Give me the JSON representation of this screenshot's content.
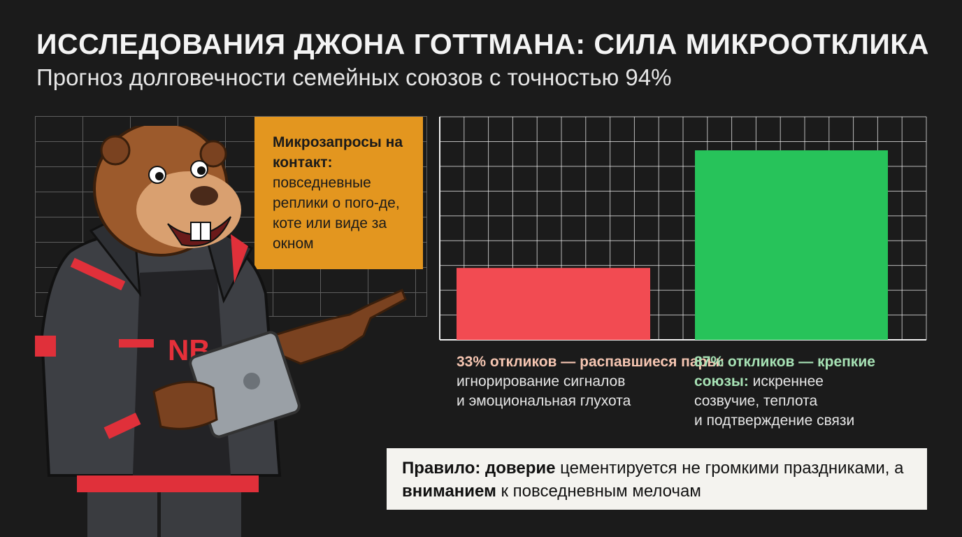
{
  "header": {
    "title": "ИССЛЕДОВАНИЯ ДЖОНА ГОТТМАНА: СИЛА МИКРООТКЛИКА",
    "subtitle": "Прогноз долговечности семейных союзов с точностью 94%"
  },
  "callout": {
    "heading": "Микрозапросы на контакт:",
    "body": "повседневные реплики о пого-де, коте или виде за окном"
  },
  "chart_data": {
    "type": "bar",
    "categories": [
      "33% откликов — распавшиеся пары",
      "87% откликов — крепкие союзы"
    ],
    "values": [
      33,
      87
    ],
    "ylim": [
      0,
      100
    ],
    "grid": true,
    "colors": [
      "#f24b52",
      "#27c35a"
    ]
  },
  "captions": {
    "left": {
      "highlight": "33% откликов — распавшиеся пары:",
      "line1": "игнорирование сигналов",
      "line2": "и эмоциональная глухота"
    },
    "right": {
      "highlight1": "87% откликов — крепкие",
      "highlight2": "союзы:",
      "tail": " искреннее",
      "line2": "созвучие, теплота",
      "line3": "и подтверждение связи"
    }
  },
  "rule": {
    "lead": "Правило:",
    "word1": "доверие",
    "mid": " цементируется не громкими праздниками, а ",
    "word2": "вниманием",
    "tail": " к повседневным мелочам"
  },
  "mascot": {
    "shirt_text": "NB"
  },
  "icons": {
    "mascot": "beaver-mascot-icon",
    "tablet": "tablet-icon"
  }
}
